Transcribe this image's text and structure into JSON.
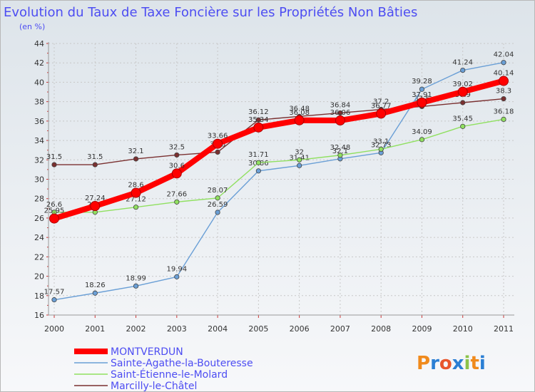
{
  "chart_data": {
    "type": "line",
    "title": "Evolution du Taux de Taxe Foncière sur les Propriétés Non Bâties",
    "subtitle": "(en %)",
    "xlabel": "",
    "ylabel": "",
    "x": [
      "2000",
      "2001",
      "2002",
      "2003",
      "2004",
      "2005",
      "2006",
      "2007",
      "2008",
      "2009",
      "2010",
      "2011"
    ],
    "yticks": [
      "16",
      "18",
      "20",
      "22",
      "24",
      "26",
      "28",
      "30",
      "32",
      "34",
      "36",
      "38",
      "40",
      "42",
      "44"
    ],
    "ylim": [
      16,
      44
    ],
    "grid": true,
    "legend_position": "bottom-left",
    "series": [
      {
        "name": "MONTVERDUN",
        "color": "#ff0000",
        "values": [
          25.95,
          27.24,
          28.6,
          30.6,
          33.66,
          35.34,
          36.08,
          36.06,
          36.77,
          37.91,
          39.02,
          40.14
        ],
        "labels": [
          "25.95",
          "27.24",
          "28.6",
          "30.6",
          "33.66",
          "35.34",
          "36.08",
          "36.06",
          "36.77",
          "37.91",
          "39.02",
          "40.14"
        ]
      },
      {
        "name": "Sainte-Agathe-la-Bouteresse",
        "color": "#6a9fd6",
        "values": [
          17.57,
          18.26,
          18.99,
          19.94,
          26.59,
          30.86,
          31.41,
          32.11,
          32.73,
          39.28,
          41.24,
          42.04
        ],
        "labels": [
          "17.57",
          "18.26",
          "18.99",
          "19.94",
          "26.59",
          "30.86",
          "31.41",
          "32.1",
          "32.73",
          "39.28",
          "41.24",
          "42.04"
        ]
      },
      {
        "name": "Saint-Étienne-le-Molard",
        "color": "#90e060",
        "values": [
          26.6,
          26.6,
          27.12,
          27.66,
          28.07,
          31.71,
          32.0,
          32.48,
          33.1,
          34.09,
          35.45,
          36.18
        ],
        "labels": [
          "26.6",
          "26.6",
          "27.12",
          "27.66",
          "28.07",
          "31.71",
          "32",
          "32.48",
          "33.1",
          "34.09",
          "35.45",
          "36.18"
        ]
      },
      {
        "name": "Marcilly-le-Châtel",
        "color": "#7a3030",
        "values": [
          31.5,
          31.5,
          32.1,
          32.5,
          32.8,
          36.12,
          36.48,
          36.84,
          37.2,
          37.5,
          37.9,
          38.3
        ],
        "labels": [
          "31.5",
          "31.5",
          "32.1",
          "32.5",
          "32.8",
          "36.12",
          "36.48",
          "36.84",
          "37.2",
          "37.5",
          "37.9",
          "38.3"
        ]
      }
    ]
  },
  "logo": {
    "text": "Proxiti",
    "colors": [
      "#f08a1c",
      "#2b7fd4",
      "#e8552b",
      "#2b7fd4",
      "#8bc34a",
      "#f08a1c",
      "#2b7fd4"
    ]
  }
}
